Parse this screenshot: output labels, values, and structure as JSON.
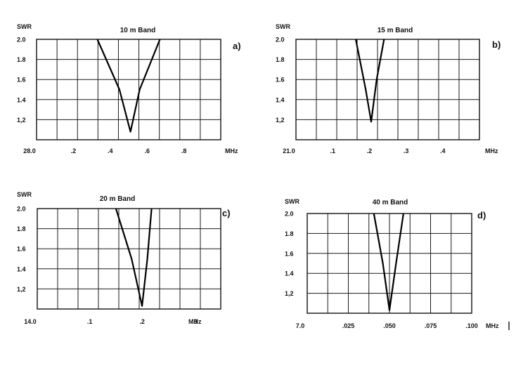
{
  "chart_data": [
    {
      "type": "line",
      "title": "10 m Band",
      "panel_label": "a)",
      "ylabel": "SWR",
      "xlabel": "MHz",
      "y_tick_labels": [
        "2.0",
        "1.8",
        "1.6",
        "1.4",
        "1,2"
      ],
      "x_tick_labels": [
        "28.0",
        ".2",
        ".4",
        ".6",
        ".8"
      ],
      "x_tick_values": [
        28.0,
        28.2,
        28.4,
        28.6,
        28.8
      ],
      "ylim": [
        1.0,
        2.0
      ],
      "xlim": [
        28.0,
        29.0
      ],
      "grid": true,
      "series": [
        {
          "x": [
            28.33,
            28.45,
            28.51,
            28.56,
            28.67
          ],
          "y": [
            2.0,
            1.5,
            1.08,
            1.5,
            2.0
          ]
        }
      ]
    },
    {
      "type": "line",
      "title": "15 m Band",
      "panel_label": "b)",
      "ylabel": "SWR",
      "xlabel": "MHz",
      "y_tick_labels": [
        "2.0",
        "1.8",
        "1.6",
        "1.4",
        "1,2"
      ],
      "x_tick_labels": [
        "21.0",
        ".1",
        ".2",
        ".3",
        ".4"
      ],
      "x_tick_values": [
        21.0,
        21.1,
        21.2,
        21.3,
        21.4
      ],
      "ylim": [
        1.0,
        2.0
      ],
      "xlim": [
        21.0,
        21.5
      ],
      "grid": true,
      "series": [
        {
          "x": [
            21.163,
            21.19,
            21.205,
            21.22,
            21.24
          ],
          "y": [
            2.0,
            1.5,
            1.18,
            1.6,
            2.0
          ]
        }
      ]
    },
    {
      "type": "line",
      "title": "20 m Band",
      "panel_label": "c)",
      "ylabel": "SWR",
      "xlabel": "MHz",
      "y_tick_labels": [
        "2.0",
        "1.8",
        "1.6",
        "1.4",
        "1,2"
      ],
      "x_tick_labels": [
        "14.0",
        ".1",
        ".2",
        ".3"
      ],
      "x_tick_values": [
        14.0,
        14.1,
        14.2,
        14.3
      ],
      "ylim": [
        1.0,
        2.0
      ],
      "xlim": [
        14.0,
        14.35
      ],
      "grid": true,
      "series": [
        {
          "x": [
            14.15,
            14.18,
            14.2,
            14.21,
            14.218
          ],
          "y": [
            2.0,
            1.5,
            1.03,
            1.5,
            2.0
          ]
        }
      ]
    },
    {
      "type": "line",
      "title": "40 m Band",
      "panel_label": "d)",
      "ylabel": "SWR",
      "xlabel": "MHz",
      "y_tick_labels": [
        "2.0",
        "1.8",
        "1.6",
        "1.4",
        "1,2"
      ],
      "x_tick_labels": [
        "7.0",
        ".025",
        ".050",
        ".075",
        ".100"
      ],
      "x_tick_values": [
        7.0,
        7.025,
        7.05,
        7.075,
        7.1
      ],
      "ylim": [
        1.0,
        2.0
      ],
      "xlim": [
        7.0,
        7.1
      ],
      "grid": true,
      "series": [
        {
          "x": [
            7.0405,
            7.046,
            7.05,
            7.054,
            7.0585
          ],
          "y": [
            2.0,
            1.5,
            1.03,
            1.5,
            2.0
          ]
        }
      ]
    }
  ]
}
